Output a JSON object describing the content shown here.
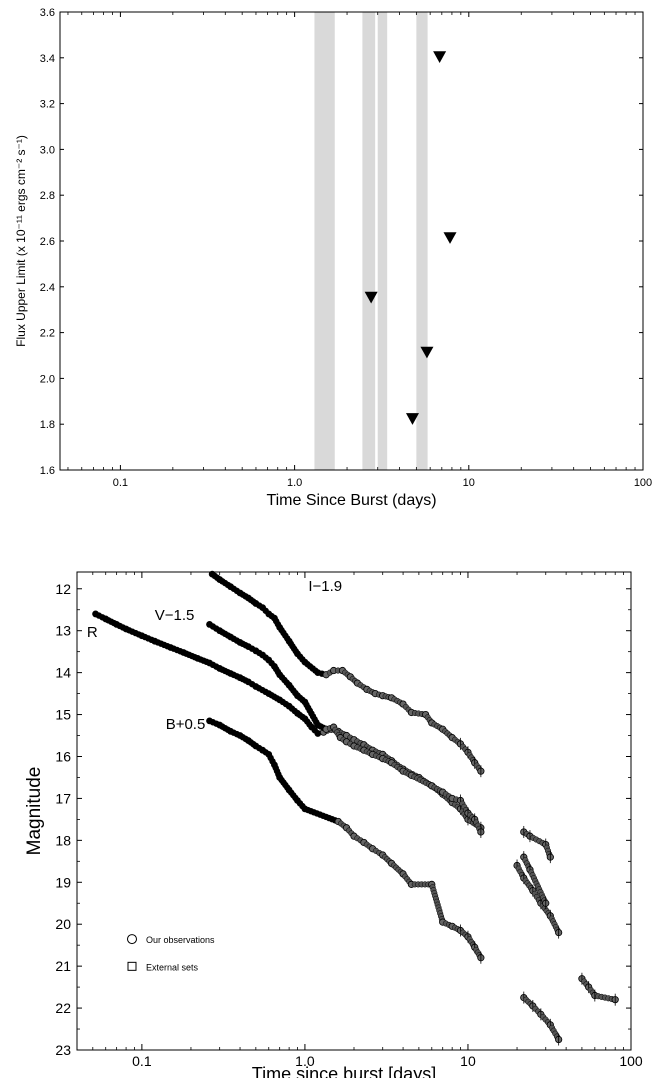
{
  "chart_data": [
    {
      "type": "scatter",
      "xlabel": "Time Since Burst (days)",
      "ylabel": "Flux Upper Limit (x 10⁻¹¹ ergs cm⁻² s⁻¹)",
      "xscale": "log",
      "xlim": [
        0.045,
        100
      ],
      "ylim": [
        1.6,
        3.6
      ],
      "x_ticks": [
        0.1,
        1.0,
        10,
        100
      ],
      "x_tick_labels": [
        "0.1",
        "1.0",
        "10",
        "100"
      ],
      "y_ticks": [
        1.6,
        1.8,
        2.0,
        2.2,
        2.4,
        2.6,
        2.8,
        3.0,
        3.2,
        3.4,
        3.6
      ],
      "y_tick_labels": [
        "1.6",
        "1.8",
        "2.0",
        "2.2",
        "2.4",
        "2.6",
        "2.8",
        "3.0",
        "3.2",
        "3.4",
        "3.6"
      ],
      "shaded_intervals": [
        [
          1.3,
          1.7
        ],
        [
          2.45,
          2.9
        ],
        [
          3.0,
          3.4
        ],
        [
          5.0,
          5.8
        ]
      ],
      "marker": "triangle-down",
      "points": [
        {
          "x": 2.75,
          "y": 2.35
        },
        {
          "x": 4.75,
          "y": 1.82
        },
        {
          "x": 5.75,
          "y": 2.11
        },
        {
          "x": 6.8,
          "y": 3.4
        },
        {
          "x": 7.8,
          "y": 2.61
        }
      ],
      "colors": {
        "marker": "#000000",
        "shade": "#d9d9d9"
      }
    },
    {
      "type": "scatter",
      "xlabel": "Time since burst [days]",
      "ylabel": "Magnitude",
      "xscale": "log",
      "xlim": [
        0.04,
        100
      ],
      "ylim": [
        23,
        11.6
      ],
      "y_inverted": true,
      "x_ticks": [
        0.1,
        1.0,
        10,
        100
      ],
      "x_tick_labels": [
        "0.1",
        "1.0",
        "10",
        "100"
      ],
      "y_ticks": [
        12,
        13,
        14,
        15,
        16,
        17,
        18,
        19,
        20,
        21,
        22,
        23
      ],
      "y_tick_labels": [
        "12",
        "13",
        "14",
        "15",
        "16",
        "17",
        "18",
        "19",
        "20",
        "21",
        "22",
        "23"
      ],
      "series_labels": [
        {
          "text": "R",
          "x": 0.046,
          "y": 13.15
        },
        {
          "text": "V−1.5",
          "x": 0.12,
          "y": 12.75
        },
        {
          "text": "I−1.9",
          "x": 1.05,
          "y": 12.05
        },
        {
          "text": "B+0.5",
          "x": 0.14,
          "y": 15.35
        }
      ],
      "legend": {
        "position": "lower-left",
        "entries": [
          {
            "marker": "circle",
            "label": "Our observations"
          },
          {
            "marker": "square",
            "label": "External sets"
          }
        ]
      },
      "series": [
        {
          "id": "R",
          "points": [
            [
              0.052,
              12.6
            ],
            [
              0.06,
              12.72
            ],
            [
              0.07,
              12.85
            ],
            [
              0.08,
              12.96
            ],
            [
              0.1,
              13.12
            ],
            [
              0.12,
              13.25
            ],
            [
              0.15,
              13.4
            ],
            [
              0.18,
              13.52
            ],
            [
              0.22,
              13.66
            ],
            [
              0.26,
              13.77
            ],
            [
              0.3,
              13.9
            ],
            [
              0.35,
              14.02
            ],
            [
              0.4,
              14.12
            ],
            [
              0.45,
              14.22
            ],
            [
              0.5,
              14.33
            ],
            [
              0.6,
              14.5
            ],
            [
              0.7,
              14.65
            ],
            [
              0.8,
              14.8
            ],
            [
              0.9,
              14.97
            ],
            [
              1.0,
              15.1
            ],
            [
              1.1,
              15.3
            ],
            [
              1.2,
              15.45
            ],
            [
              1.3,
              15.42
            ],
            [
              1.45,
              15.35
            ],
            [
              1.6,
              15.4
            ],
            [
              1.8,
              15.5
            ],
            [
              2.0,
              15.6
            ],
            [
              2.3,
              15.72
            ],
            [
              2.6,
              15.85
            ],
            [
              3.0,
              15.95
            ],
            [
              3.4,
              16.1
            ],
            [
              4.0,
              16.3
            ],
            [
              5.0,
              16.5
            ],
            [
              6.0,
              16.7
            ],
            [
              7.0,
              16.9
            ],
            [
              8.0,
              17.1
            ],
            [
              9.0,
              17.25
            ],
            [
              10.0,
              17.5
            ],
            [
              12.0,
              17.7
            ],
            [
              20.0,
              18.6
            ],
            [
              22.0,
              18.9
            ],
            [
              25.0,
              19.2
            ],
            [
              28.0,
              19.5
            ],
            [
              32.0,
              19.8
            ],
            [
              36.0,
              20.2
            ],
            [
              50.0,
              21.3
            ],
            [
              55.0,
              21.5
            ],
            [
              60.0,
              21.7
            ],
            [
              80.0,
              21.8
            ]
          ]
        },
        {
          "id": "V-1.5",
          "points": [
            [
              0.26,
              12.85
            ],
            [
              0.3,
              13.0
            ],
            [
              0.35,
              13.15
            ],
            [
              0.4,
              13.28
            ],
            [
              0.45,
              13.38
            ],
            [
              0.5,
              13.48
            ],
            [
              0.55,
              13.58
            ],
            [
              0.6,
              13.7
            ],
            [
              0.65,
              13.85
            ],
            [
              0.7,
              14.05
            ],
            [
              0.8,
              14.3
            ],
            [
              0.9,
              14.55
            ],
            [
              1.0,
              14.7
            ],
            [
              1.2,
              15.25
            ],
            [
              1.35,
              15.35
            ],
            [
              1.5,
              15.3
            ],
            [
              1.65,
              15.55
            ],
            [
              1.8,
              15.65
            ],
            [
              2.0,
              15.75
            ],
            [
              2.3,
              15.85
            ],
            [
              2.6,
              15.95
            ],
            [
              3.0,
              16.05
            ],
            [
              3.4,
              16.15
            ],
            [
              4.0,
              16.35
            ],
            [
              4.5,
              16.45
            ],
            [
              6.0,
              16.7
            ],
            [
              7.0,
              16.85
            ],
            [
              8.0,
              17.0
            ],
            [
              9.0,
              17.05
            ],
            [
              10.0,
              17.35
            ],
            [
              11.0,
              17.5
            ],
            [
              12.0,
              17.8
            ],
            [
              22.0,
              18.4
            ],
            [
              24.0,
              18.7
            ],
            [
              30.0,
              19.5
            ]
          ]
        },
        {
          "id": "I-1.9",
          "points": [
            [
              0.27,
              11.65
            ],
            [
              0.3,
              11.78
            ],
            [
              0.35,
              11.95
            ],
            [
              0.4,
              12.1
            ],
            [
              0.45,
              12.22
            ],
            [
              0.5,
              12.35
            ],
            [
              0.55,
              12.45
            ],
            [
              0.6,
              12.6
            ],
            [
              0.65,
              12.7
            ],
            [
              0.7,
              12.92
            ],
            [
              0.8,
              13.25
            ],
            [
              0.9,
              13.55
            ],
            [
              1.0,
              13.75
            ],
            [
              1.2,
              14.0
            ],
            [
              1.35,
              14.05
            ],
            [
              1.5,
              13.95
            ],
            [
              1.7,
              13.95
            ],
            [
              1.9,
              14.1
            ],
            [
              2.1,
              14.25
            ],
            [
              2.4,
              14.4
            ],
            [
              2.7,
              14.5
            ],
            [
              3.0,
              14.55
            ],
            [
              3.4,
              14.6
            ],
            [
              4.0,
              14.75
            ],
            [
              4.5,
              14.95
            ],
            [
              5.5,
              15.0
            ],
            [
              6.0,
              15.2
            ],
            [
              7.0,
              15.35
            ],
            [
              8.0,
              15.55
            ],
            [
              9.0,
              15.7
            ],
            [
              10.0,
              15.9
            ],
            [
              11.0,
              16.15
            ],
            [
              12.0,
              16.35
            ],
            [
              22.0,
              17.8
            ],
            [
              24.0,
              17.9
            ],
            [
              30.0,
              18.1
            ],
            [
              32.0,
              18.4
            ]
          ]
        },
        {
          "id": "B+0.5",
          "points": [
            [
              0.26,
              15.15
            ],
            [
              0.3,
              15.25
            ],
            [
              0.35,
              15.4
            ],
            [
              0.4,
              15.5
            ],
            [
              0.45,
              15.62
            ],
            [
              0.5,
              15.75
            ],
            [
              0.55,
              15.85
            ],
            [
              0.6,
              15.95
            ],
            [
              0.65,
              16.2
            ],
            [
              0.7,
              16.5
            ],
            [
              0.8,
              16.8
            ],
            [
              0.9,
              17.05
            ],
            [
              1.0,
              17.25
            ],
            [
              1.6,
              17.55
            ],
            [
              1.8,
              17.7
            ],
            [
              2.0,
              17.9
            ],
            [
              2.3,
              18.05
            ],
            [
              2.6,
              18.2
            ],
            [
              3.0,
              18.35
            ],
            [
              3.4,
              18.55
            ],
            [
              4.0,
              18.8
            ],
            [
              4.5,
              19.05
            ],
            [
              6.0,
              19.05
            ],
            [
              7.0,
              19.95
            ],
            [
              8.0,
              20.05
            ],
            [
              9.0,
              20.15
            ],
            [
              10.0,
              20.3
            ],
            [
              11.0,
              20.55
            ],
            [
              12.0,
              20.8
            ],
            [
              22.0,
              21.75
            ],
            [
              25.0,
              21.95
            ],
            [
              28.0,
              22.15
            ],
            [
              32.0,
              22.4
            ],
            [
              36.0,
              22.75
            ]
          ]
        }
      ]
    }
  ]
}
